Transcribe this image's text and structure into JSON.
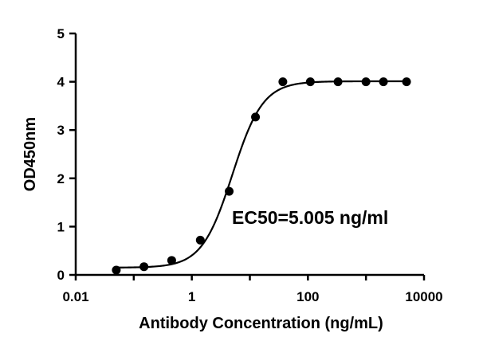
{
  "chart_data": {
    "type": "scatter",
    "xlabel": "Antibody Concentration (ng/mL)",
    "ylabel": "OD450nm",
    "x_scale": "log",
    "xlim": [
      0.01,
      10000
    ],
    "ylim": [
      0,
      5
    ],
    "x_ticks": [
      {
        "value": 0.01,
        "label": "0.01"
      },
      {
        "value": 1,
        "label": "1"
      },
      {
        "value": 100,
        "label": "100"
      },
      {
        "value": 10000,
        "label": "10000"
      }
    ],
    "y_ticks": [
      {
        "value": 0,
        "label": "0"
      },
      {
        "value": 1,
        "label": "1"
      },
      {
        "value": 2,
        "label": "2"
      },
      {
        "value": 3,
        "label": "3"
      },
      {
        "value": 4,
        "label": "4"
      },
      {
        "value": 5,
        "label": "5"
      }
    ],
    "points": [
      {
        "x": 0.05,
        "y": 0.1
      },
      {
        "x": 0.15,
        "y": 0.17
      },
      {
        "x": 0.45,
        "y": 0.3
      },
      {
        "x": 1.4,
        "y": 0.72
      },
      {
        "x": 4.4,
        "y": 1.73
      },
      {
        "x": 12.5,
        "y": 3.27
      },
      {
        "x": 37,
        "y": 4.0
      },
      {
        "x": 110,
        "y": 4.0
      },
      {
        "x": 330,
        "y": 4.0
      },
      {
        "x": 1000,
        "y": 4.0
      },
      {
        "x": 2000,
        "y": 4.0
      },
      {
        "x": 5000,
        "y": 4.0
      }
    ],
    "fit_curve": {
      "type": "4PL",
      "bottom": 0.15,
      "top": 4.01,
      "ec50": 5.005,
      "hill": 1.65,
      "x_start": 0.05,
      "x_end": 5000
    },
    "annotation": "EC50=5.005 ng/ml",
    "marker_color": "#000000",
    "line_color": "#000000",
    "grid": false,
    "legend": "none"
  }
}
